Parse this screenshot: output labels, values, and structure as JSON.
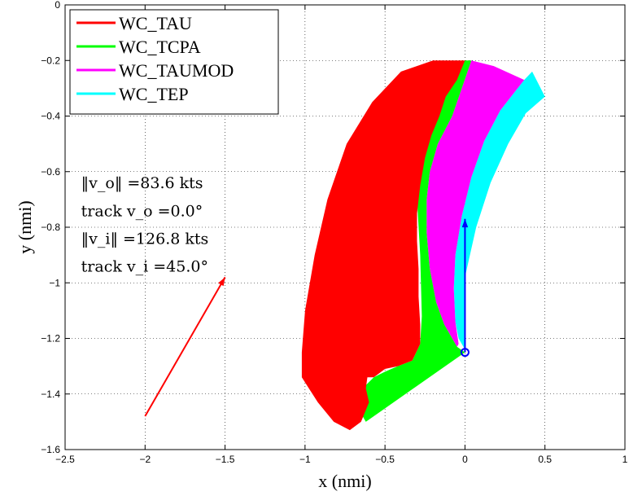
{
  "chart_data": {
    "type": "area",
    "xlabel": "x (nmi)",
    "ylabel": "y (nmi)",
    "xlim": [
      -2.5,
      1.0
    ],
    "ylim": [
      -1.6,
      0.0
    ],
    "grid": true,
    "grid_style": "dotted",
    "legend_placement": "top-left",
    "x_ticks": [
      {
        "value": -2.5,
        "label": "−2.5"
      },
      {
        "value": -2.0,
        "label": "−2"
      },
      {
        "value": -1.5,
        "label": "−1.5"
      },
      {
        "value": -1.0,
        "label": "−1"
      },
      {
        "value": -0.5,
        "label": "−0.5"
      },
      {
        "value": 0.0,
        "label": "0"
      },
      {
        "value": 0.5,
        "label": "0.5"
      },
      {
        "value": 1.0,
        "label": "1"
      }
    ],
    "y_ticks": [
      {
        "value": 0.0,
        "label": "0"
      },
      {
        "value": -0.2,
        "label": "−0.2"
      },
      {
        "value": -0.4,
        "label": "−0.4"
      },
      {
        "value": -0.6,
        "label": "−0.6"
      },
      {
        "value": -0.8,
        "label": "−0.8"
      },
      {
        "value": -1.0,
        "label": "−1"
      },
      {
        "value": -1.2,
        "label": "−1.2"
      },
      {
        "value": -1.4,
        "label": "−1.4"
      },
      {
        "value": -1.6,
        "label": "−1.6"
      }
    ],
    "series": [
      {
        "name": "WC_TEP",
        "color": "#00ffff",
        "points": [
          [
            0.0,
            -1.24
          ],
          [
            0.0,
            -0.98
          ],
          [
            0.07,
            -0.8
          ],
          [
            0.16,
            -0.64
          ],
          [
            0.27,
            -0.5
          ],
          [
            0.38,
            -0.39
          ],
          [
            0.5,
            -0.33
          ],
          [
            0.42,
            -0.24
          ],
          [
            0.37,
            -0.27
          ],
          [
            0.22,
            -0.38
          ],
          [
            0.12,
            -0.49
          ],
          [
            0.04,
            -0.62
          ],
          [
            -0.02,
            -0.76
          ],
          [
            -0.06,
            -0.9
          ],
          [
            -0.07,
            -1.02
          ],
          [
            -0.06,
            -1.14
          ],
          [
            -0.04,
            -1.2
          ]
        ]
      },
      {
        "name": "WC_TAUMOD",
        "color": "#ff00ff",
        "points": [
          [
            -0.04,
            -1.22
          ],
          [
            -0.06,
            -1.14
          ],
          [
            -0.07,
            -1.02
          ],
          [
            -0.06,
            -0.9
          ],
          [
            -0.02,
            -0.76
          ],
          [
            0.04,
            -0.62
          ],
          [
            0.12,
            -0.49
          ],
          [
            0.22,
            -0.38
          ],
          [
            0.37,
            -0.27
          ],
          [
            0.18,
            -0.22
          ],
          [
            0.04,
            -0.2
          ],
          [
            -0.02,
            -0.3
          ],
          [
            -0.08,
            -0.4
          ],
          [
            -0.17,
            -0.5
          ],
          [
            -0.22,
            -0.6
          ],
          [
            -0.24,
            -0.7
          ],
          [
            -0.24,
            -0.82
          ],
          [
            -0.22,
            -0.95
          ],
          [
            -0.18,
            -1.07
          ],
          [
            -0.13,
            -1.15
          ],
          [
            -0.05,
            -1.23
          ]
        ]
      },
      {
        "name": "WC_TCPA",
        "color": "#00ff00",
        "points": [
          [
            -0.62,
            -1.5
          ],
          [
            -0.66,
            -1.46
          ],
          [
            -0.63,
            -1.42
          ],
          [
            -0.64,
            -1.38
          ],
          [
            -0.57,
            -1.34
          ],
          [
            -0.5,
            -1.32
          ],
          [
            -0.42,
            -1.3
          ],
          [
            -0.33,
            -1.28
          ],
          [
            -0.28,
            -1.22
          ],
          [
            -0.27,
            -1.12
          ],
          [
            -0.28,
            -0.9
          ],
          [
            -0.3,
            -0.7
          ],
          [
            -0.27,
            -0.5
          ],
          [
            -0.2,
            -0.35
          ],
          [
            -0.1,
            -0.28
          ],
          [
            0.0,
            -0.2
          ],
          [
            0.04,
            -0.2
          ],
          [
            -0.02,
            -0.3
          ],
          [
            -0.08,
            -0.4
          ],
          [
            -0.17,
            -0.5
          ],
          [
            -0.22,
            -0.6
          ],
          [
            -0.24,
            -0.7
          ],
          [
            -0.24,
            -0.82
          ],
          [
            -0.22,
            -0.95
          ],
          [
            -0.18,
            -1.07
          ],
          [
            -0.13,
            -1.15
          ],
          [
            -0.05,
            -1.23
          ],
          [
            0.0,
            -1.25
          ]
        ]
      },
      {
        "name": "WC_TAU",
        "color": "#ff0000",
        "points": [
          [
            -0.65,
            -1.5
          ],
          [
            -0.72,
            -1.53
          ],
          [
            -0.82,
            -1.5
          ],
          [
            -0.92,
            -1.43
          ],
          [
            -1.02,
            -1.34
          ],
          [
            -1.02,
            -1.25
          ],
          [
            -1.0,
            -1.1
          ],
          [
            -0.94,
            -0.9
          ],
          [
            -0.86,
            -0.7
          ],
          [
            -0.74,
            -0.5
          ],
          [
            -0.58,
            -0.35
          ],
          [
            -0.4,
            -0.24
          ],
          [
            -0.2,
            -0.2
          ],
          [
            0.0,
            -0.2
          ],
          [
            -0.05,
            -0.27
          ],
          [
            -0.12,
            -0.33
          ],
          [
            -0.16,
            -0.4
          ],
          [
            -0.21,
            -0.47
          ],
          [
            -0.25,
            -0.55
          ],
          [
            -0.28,
            -0.65
          ],
          [
            -0.3,
            -0.75
          ],
          [
            -0.3,
            -0.85
          ],
          [
            -0.29,
            -0.95
          ],
          [
            -0.29,
            -1.05
          ],
          [
            -0.28,
            -1.15
          ],
          [
            -0.28,
            -1.22
          ],
          [
            -0.33,
            -1.28
          ],
          [
            -0.42,
            -1.3
          ],
          [
            -0.5,
            -1.31
          ],
          [
            -0.57,
            -1.34
          ],
          [
            -0.61,
            -1.34
          ],
          [
            -0.62,
            -1.38
          ],
          [
            -0.6,
            -1.43
          ]
        ]
      }
    ],
    "vectors": [
      {
        "name": "intruder-velocity",
        "color": "#ff0000",
        "from": [
          -2.0,
          -1.48
        ],
        "to": [
          -1.5,
          -0.98
        ]
      },
      {
        "name": "ownship-velocity",
        "color": "#0000ff",
        "from": [
          0.0,
          -1.25
        ],
        "to": [
          0.0,
          -0.77
        ]
      }
    ],
    "marker": {
      "color": "#0000ff",
      "at": [
        0.0,
        -1.25
      ]
    },
    "annotations": [
      {
        "text": "‖v_o‖ =83.6 kts",
        "x": -2.4,
        "y": -0.66
      },
      {
        "text": "track v_o =0.0°",
        "x": -2.4,
        "y": -0.76
      },
      {
        "text": "‖v_i‖ =126.8 kts",
        "x": -2.4,
        "y": -0.86
      },
      {
        "text": "track v_i =45.0°",
        "x": -2.4,
        "y": -0.96
      }
    ]
  }
}
